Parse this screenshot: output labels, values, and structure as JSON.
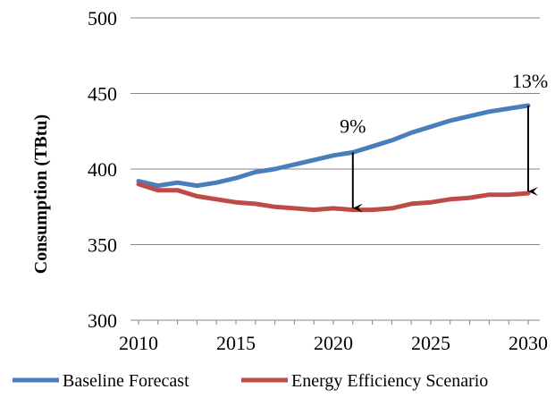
{
  "chart_data": {
    "type": "line",
    "title": "",
    "xlabel": "",
    "ylabel": "Consumption (TBtu)",
    "xlim": [
      2010,
      2030
    ],
    "ylim": [
      300,
      500
    ],
    "x_ticks": [
      2010,
      2015,
      2020,
      2025,
      2030
    ],
    "y_ticks": [
      300,
      350,
      400,
      450,
      500
    ],
    "grid": "horizontal",
    "legend_position": "bottom",
    "x": [
      2010,
      2011,
      2012,
      2013,
      2014,
      2015,
      2016,
      2017,
      2018,
      2019,
      2020,
      2021,
      2022,
      2023,
      2024,
      2025,
      2026,
      2027,
      2028,
      2029,
      2030
    ],
    "series": [
      {
        "name": "Baseline Forecast",
        "color": "#4a7ebb",
        "values": [
          392,
          389,
          391,
          389,
          391,
          394,
          398,
          400,
          403,
          406,
          409,
          411,
          415,
          419,
          424,
          428,
          432,
          435,
          438,
          440,
          442
        ]
      },
      {
        "name": "Energy Efficiency Scenario",
        "color": "#be4b48",
        "values": [
          390,
          386,
          386,
          382,
          380,
          378,
          377,
          375,
          374,
          373,
          374,
          373,
          373,
          374,
          377,
          378,
          380,
          381,
          383,
          383,
          384
        ]
      }
    ],
    "annotations": [
      {
        "text": "9%",
        "x": 2021,
        "from_y": 411,
        "to_y": 373
      },
      {
        "text": "13%",
        "x": 2030,
        "from_y": 442,
        "to_y": 384
      }
    ]
  }
}
